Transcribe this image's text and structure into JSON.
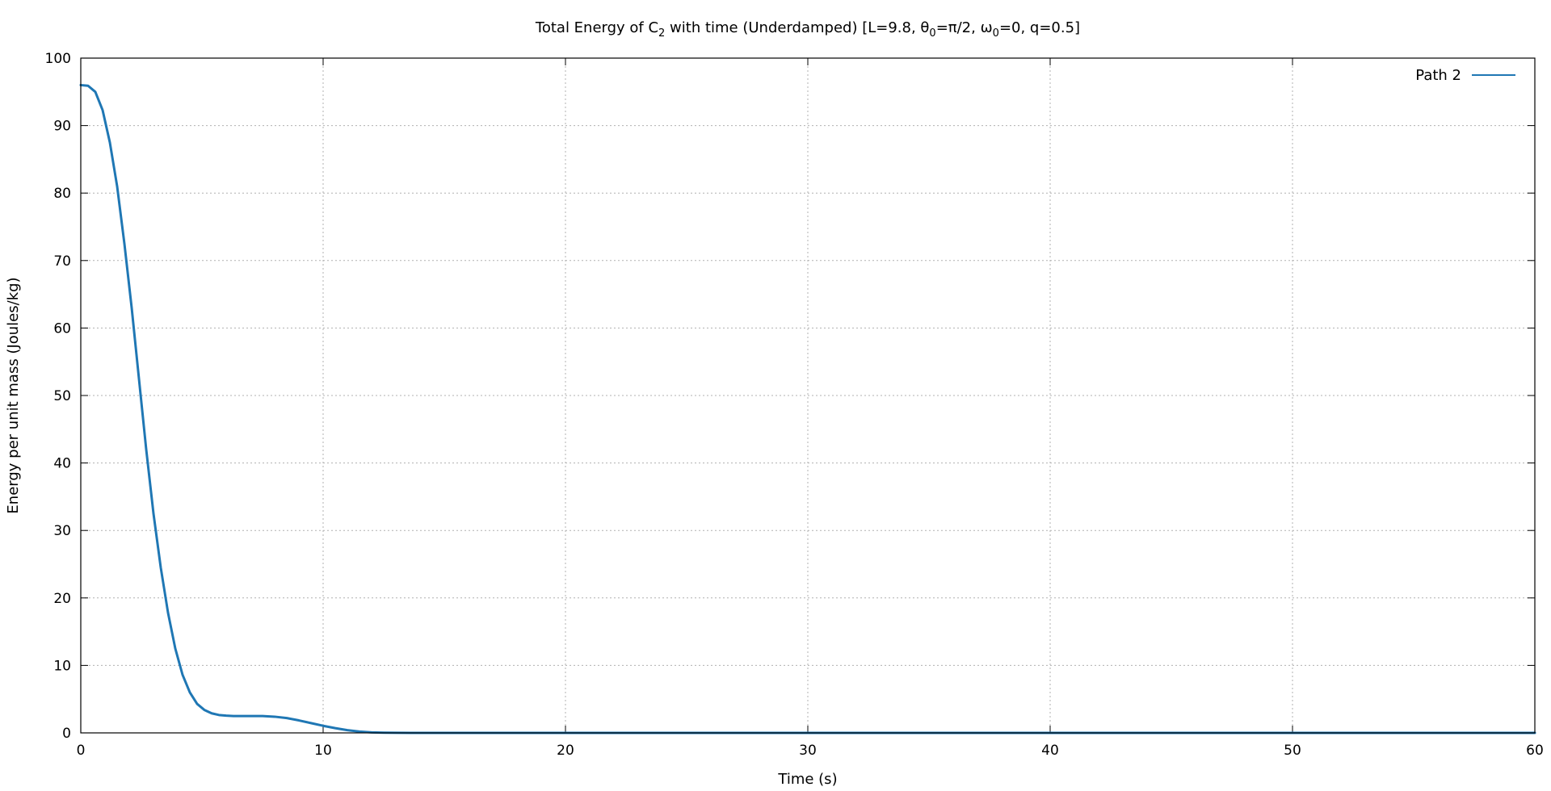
{
  "chart_data": {
    "type": "line",
    "title": {
      "prefix": "Total Energy of C",
      "sub1": "2",
      "mid1": " with time (Underdamped) [L=9.8, θ",
      "sub2": "0",
      "mid2": "=π/2, ω",
      "sub3": "0",
      "suffix": "=0, q=0.5]"
    },
    "xlabel": "Time (s)",
    "ylabel": "Energy per unit mass (Joules/kg)",
    "xlim": [
      0,
      60
    ],
    "ylim": [
      0,
      100
    ],
    "xticks": [
      0,
      10,
      20,
      30,
      40,
      50,
      60
    ],
    "yticks": [
      0,
      10,
      20,
      30,
      40,
      50,
      60,
      70,
      80,
      90,
      100
    ],
    "grid": true,
    "legend_position": "top-right",
    "colors": {
      "series": "#1f77b4",
      "grid": "#b0b0b0",
      "axis": "#000000"
    },
    "series": [
      {
        "name": "Path 2",
        "x": [
          0,
          0.3,
          0.6,
          0.9,
          1.2,
          1.5,
          1.8,
          2.1,
          2.4,
          2.7,
          3.0,
          3.3,
          3.6,
          3.9,
          4.2,
          4.5,
          4.8,
          5.1,
          5.4,
          5.7,
          6.0,
          6.3,
          6.6,
          7.0,
          7.5,
          8.0,
          8.5,
          9.0,
          9.5,
          10.0,
          10.5,
          11.0,
          11.5,
          12.0,
          12.5,
          13.0,
          14.0,
          16.0,
          20.0,
          30.0,
          40.0,
          50.0,
          60.0
        ],
        "y": [
          96.0,
          95.9,
          95.0,
          92.3,
          87.5,
          81.0,
          72.5,
          63.0,
          52.5,
          42.0,
          32.5,
          24.5,
          17.8,
          12.5,
          8.6,
          6.0,
          4.3,
          3.4,
          2.9,
          2.65,
          2.55,
          2.5,
          2.5,
          2.5,
          2.5,
          2.4,
          2.2,
          1.85,
          1.45,
          1.05,
          0.7,
          0.4,
          0.2,
          0.08,
          0.03,
          0.01,
          0.0,
          0.0,
          0.0,
          0.0,
          0.0,
          0.0,
          0.0
        ]
      }
    ]
  }
}
